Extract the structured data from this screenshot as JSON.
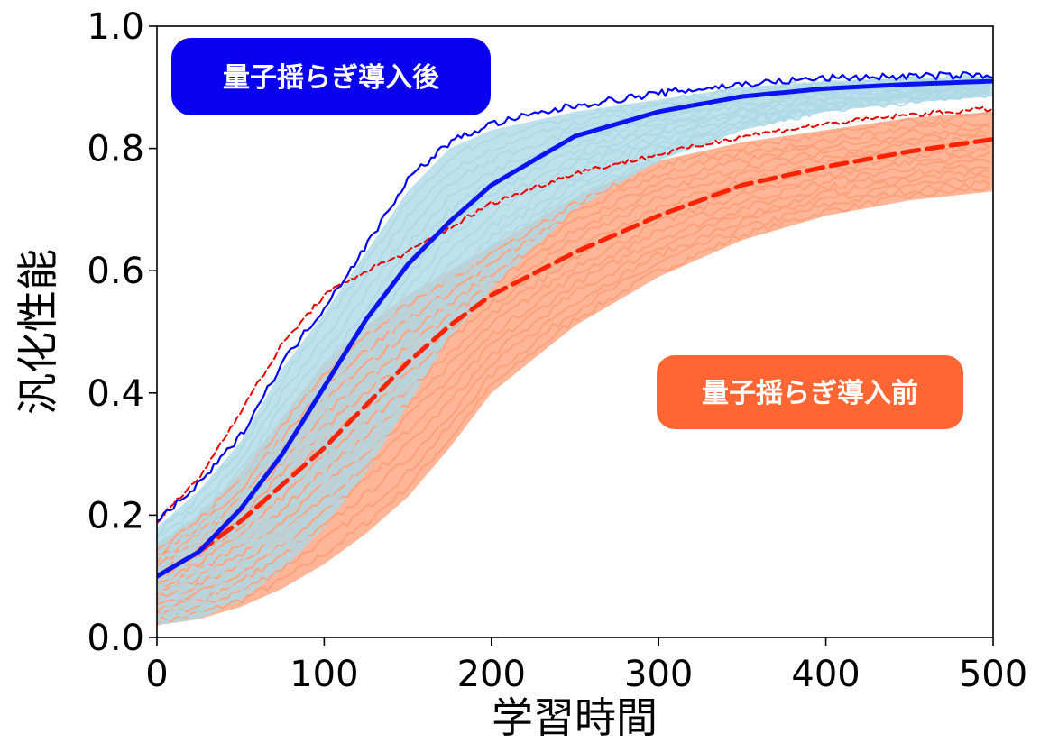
{
  "chart_data": {
    "type": "line",
    "xlabel": "学習時間",
    "ylabel": "汎化性能",
    "xlim": [
      0,
      500
    ],
    "ylim": [
      0.0,
      1.0
    ],
    "x_ticks": [
      "0",
      "100",
      "200",
      "300",
      "400",
      "500"
    ],
    "y_ticks": [
      "0.0",
      "0.2",
      "0.4",
      "0.6",
      "0.8",
      "1.0"
    ],
    "grid": false,
    "annotations": [
      {
        "text": "量子揺らぎ導入後",
        "color": "#0a00f0"
      },
      {
        "text": "量子揺らぎ導入前",
        "color": "#ff6633"
      }
    ],
    "x": [
      0,
      25,
      50,
      75,
      100,
      125,
      150,
      175,
      200,
      250,
      300,
      350,
      400,
      450,
      500
    ],
    "series": [
      {
        "role": "after-mean",
        "style": "solid",
        "color": "#0a14f0",
        "values": [
          0.1,
          0.14,
          0.21,
          0.3,
          0.41,
          0.52,
          0.61,
          0.68,
          0.74,
          0.82,
          0.86,
          0.885,
          0.898,
          0.905,
          0.91
        ]
      },
      {
        "role": "after-max",
        "style": "solid-thin",
        "color": "#0000ff",
        "values": [
          0.19,
          0.25,
          0.33,
          0.45,
          0.54,
          0.64,
          0.75,
          0.81,
          0.84,
          0.87,
          0.89,
          0.905,
          0.915,
          0.918,
          0.92
        ]
      },
      {
        "role": "before-mean",
        "style": "dashed",
        "color": "#ff2200",
        "values": [
          0.1,
          0.14,
          0.19,
          0.25,
          0.31,
          0.38,
          0.45,
          0.51,
          0.56,
          0.63,
          0.69,
          0.74,
          0.77,
          0.795,
          0.815
        ]
      },
      {
        "role": "before-max",
        "style": "dashed-thin",
        "color": "#e60000",
        "values": [
          0.19,
          0.26,
          0.37,
          0.48,
          0.56,
          0.6,
          0.63,
          0.67,
          0.71,
          0.76,
          0.79,
          0.82,
          0.84,
          0.855,
          0.865
        ]
      }
    ],
    "bands": [
      {
        "role": "after-runs",
        "color": "#add8e6",
        "upper": [
          0.18,
          0.24,
          0.32,
          0.44,
          0.53,
          0.63,
          0.73,
          0.8,
          0.83,
          0.86,
          0.88,
          0.9,
          0.91,
          0.915,
          0.918
        ],
        "lower": [
          0.02,
          0.03,
          0.06,
          0.11,
          0.18,
          0.27,
          0.38,
          0.49,
          0.57,
          0.7,
          0.78,
          0.83,
          0.86,
          0.875,
          0.885
        ]
      },
      {
        "role": "before-runs",
        "color": "#ffa07a",
        "upper": [
          0.15,
          0.2,
          0.27,
          0.36,
          0.45,
          0.51,
          0.56,
          0.6,
          0.64,
          0.72,
          0.78,
          0.81,
          0.83,
          0.85,
          0.86
        ],
        "lower": [
          0.02,
          0.03,
          0.05,
          0.08,
          0.12,
          0.17,
          0.23,
          0.31,
          0.4,
          0.51,
          0.59,
          0.65,
          0.69,
          0.715,
          0.73
        ]
      }
    ]
  }
}
